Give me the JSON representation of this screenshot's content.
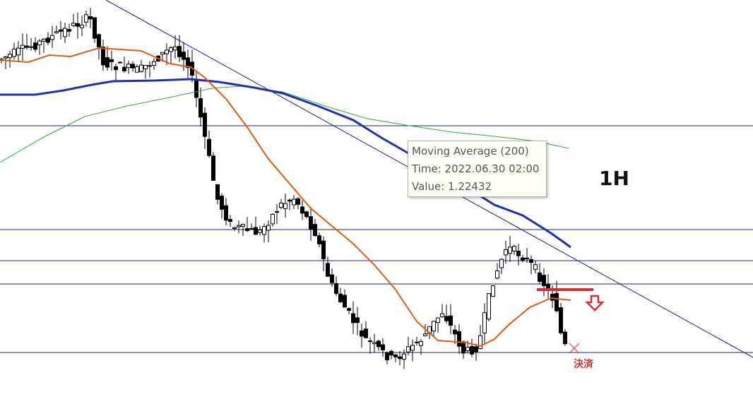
{
  "tooltip": {
    "title": "Moving Average (200)",
    "time": "Time: 2022.06.30 02:00",
    "value": "Value: 1.22432"
  },
  "timeframe": "1H",
  "annotation": "決済"
}
